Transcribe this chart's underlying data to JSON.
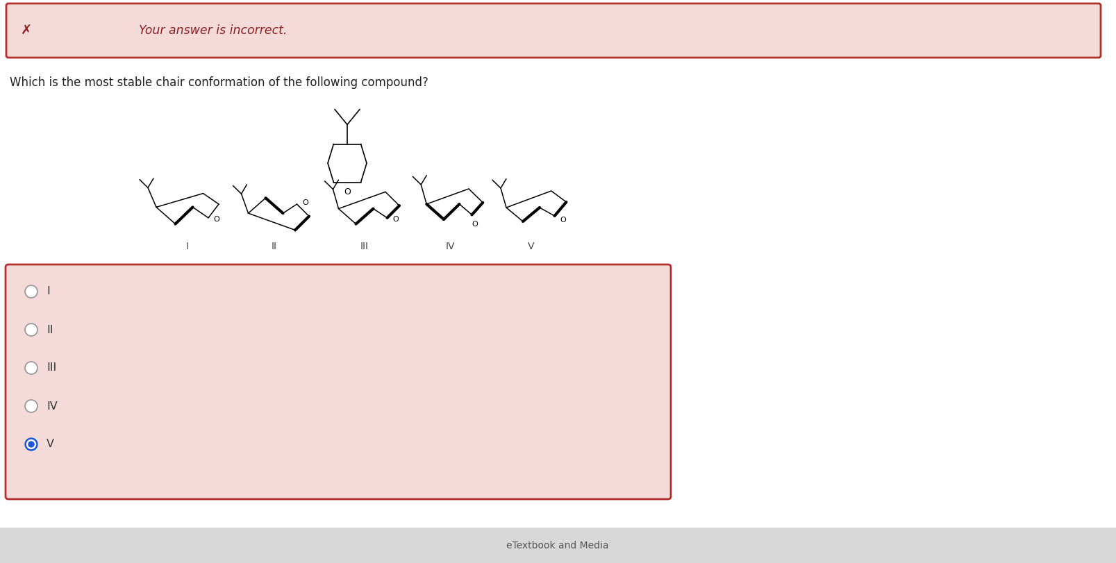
{
  "bg_color": "#ffffff",
  "error_box_bg": "#f5dada",
  "error_box_border": "#b03030",
  "error_text": "Your answer is incorrect.",
  "error_x_color": "#8b2020",
  "question_text": "Which is the most stable chair conformation of the following compound?",
  "question_fontsize": 12,
  "answer_box_bg": "#f5dada",
  "answer_box_border": "#b03030",
  "options": [
    "I",
    "II",
    "III",
    "IV",
    "V"
  ],
  "selected_option": "V",
  "radio_selected_color": "#1a56db",
  "radio_unselected_color": "#999999",
  "label_color": "#333333",
  "bottom_bar_color": "#d8d8d8",
  "bottom_bar_text": "eTextbook and Media",
  "roman_labels": [
    "I",
    "II",
    "III",
    "IV",
    "V"
  ],
  "mol_line_color": "#000000",
  "mol_lw_thin": 1.1,
  "mol_lw_thick": 3.0
}
